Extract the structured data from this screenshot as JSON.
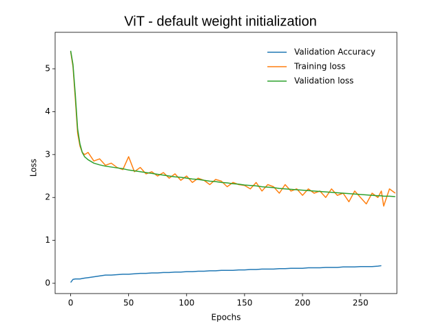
{
  "chart_data": {
    "type": "line",
    "title": "ViT - default weight initialization",
    "xlabel": "Epochs",
    "ylabel": "Loss",
    "x": [
      0,
      2,
      4,
      6,
      8,
      10,
      12,
      15,
      20,
      25,
      30,
      35,
      40,
      45,
      50,
      55,
      60,
      65,
      70,
      75,
      80,
      85,
      90,
      95,
      100,
      105,
      110,
      115,
      120,
      125,
      130,
      135,
      140,
      145,
      150,
      155,
      160,
      165,
      170,
      175,
      180,
      185,
      190,
      195,
      200,
      205,
      210,
      215,
      220,
      225,
      230,
      235,
      240,
      245,
      250,
      255,
      260,
      265,
      268,
      270,
      275,
      280
    ],
    "series": [
      {
        "name": "Validation Accuracy",
        "color": "#1f77b4",
        "values": [
          0.02,
          0.09,
          0.1,
          0.1,
          0.1,
          0.11,
          0.12,
          0.13,
          0.15,
          0.17,
          0.19,
          0.19,
          0.2,
          0.21,
          0.21,
          0.22,
          0.23,
          0.23,
          0.24,
          0.24,
          0.25,
          0.25,
          0.26,
          0.26,
          0.27,
          0.27,
          0.28,
          0.28,
          0.29,
          0.29,
          0.3,
          0.3,
          0.3,
          0.31,
          0.31,
          0.32,
          0.32,
          0.33,
          0.33,
          0.33,
          0.34,
          0.34,
          0.35,
          0.35,
          0.35,
          0.36,
          0.36,
          0.36,
          0.37,
          0.37,
          0.37,
          0.38,
          0.38,
          0.38,
          0.39,
          0.39,
          0.39,
          0.4,
          0.41,
          null,
          null,
          null
        ]
      },
      {
        "name": "Training loss",
        "color": "#ff7f0e",
        "values": [
          5.4,
          5.05,
          4.3,
          3.5,
          3.2,
          3.05,
          3.0,
          3.05,
          2.85,
          2.9,
          2.75,
          2.8,
          2.7,
          2.65,
          2.95,
          2.6,
          2.7,
          2.55,
          2.6,
          2.5,
          2.58,
          2.45,
          2.55,
          2.4,
          2.5,
          2.35,
          2.45,
          2.4,
          2.3,
          2.42,
          2.38,
          2.25,
          2.35,
          2.3,
          2.28,
          2.2,
          2.35,
          2.15,
          2.3,
          2.25,
          2.1,
          2.3,
          2.15,
          2.2,
          2.05,
          2.2,
          2.1,
          2.15,
          2.0,
          2.2,
          2.05,
          2.1,
          1.9,
          2.15,
          2.0,
          1.85,
          2.1,
          2.0,
          2.15,
          1.8,
          2.2,
          2.1
        ]
      },
      {
        "name": "Validation loss",
        "color": "#2ca02c",
        "values": [
          5.42,
          5.1,
          4.4,
          3.6,
          3.25,
          3.05,
          2.95,
          2.88,
          2.8,
          2.76,
          2.73,
          2.71,
          2.69,
          2.67,
          2.64,
          2.62,
          2.6,
          2.58,
          2.56,
          2.54,
          2.52,
          2.5,
          2.48,
          2.47,
          2.45,
          2.43,
          2.42,
          2.4,
          2.38,
          2.37,
          2.35,
          2.34,
          2.32,
          2.31,
          2.29,
          2.28,
          2.27,
          2.25,
          2.24,
          2.23,
          2.21,
          2.2,
          2.19,
          2.18,
          2.17,
          2.16,
          2.15,
          2.14,
          2.13,
          2.12,
          2.11,
          2.1,
          2.09,
          2.08,
          2.07,
          2.06,
          2.05,
          2.04,
          2.04,
          2.03,
          2.03,
          2.02
        ]
      }
    ],
    "xlim": [
      -13.4,
      281.4
    ],
    "ylim": [
      -0.24,
      5.85
    ],
    "xticks": [
      0,
      50,
      100,
      150,
      200,
      250
    ],
    "yticks": [
      0,
      1,
      2,
      3,
      4,
      5
    ],
    "legend": "upper right",
    "grid": false
  }
}
